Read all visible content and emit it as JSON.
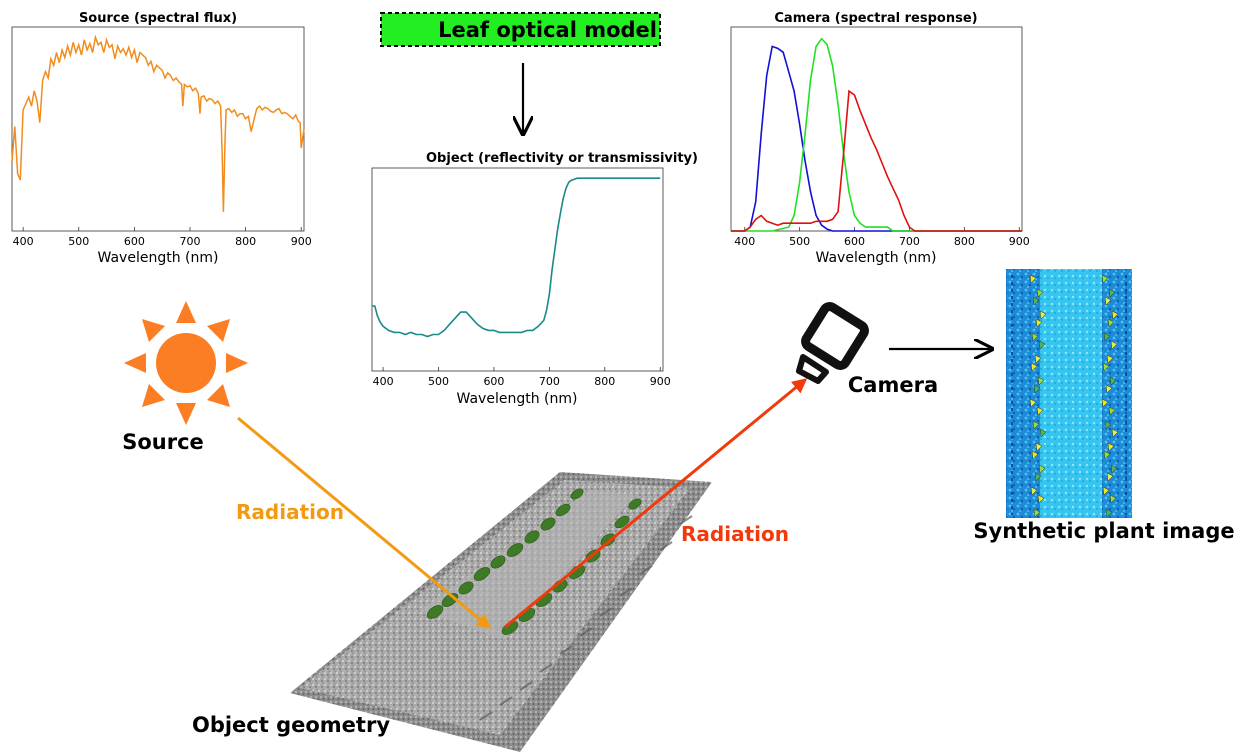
{
  "colors": {
    "source_line": "#f28c1c",
    "object_line": "#1a8a87",
    "cam_blue": "#1010d8",
    "cam_green": "#22e022",
    "cam_red": "#e01010",
    "radiation_in": "#f39a12",
    "radiation_out": "#f03a0c",
    "model_box": "#22ee22",
    "sun": "#fb7d24"
  },
  "labels": {
    "leaf_model": "Leaf optical model",
    "source": "Source",
    "camera": "Camera",
    "radiation_in": "Radiation",
    "radiation_out": "Radiation",
    "object_geometry": "Object geometry",
    "synthetic_image": "Synthetic plant image"
  },
  "icons": [
    "sun-icon",
    "camera-icon",
    "down-arrow-icon",
    "right-arrow-icon"
  ],
  "chart_data": [
    {
      "id": "source",
      "type": "line",
      "title": "Source (spectral flux)",
      "xlabel": "Wavelength (nm)",
      "ylabel": "",
      "xlim": [
        380,
        905
      ],
      "ylim": [
        0,
        1.6
      ],
      "xticks": [
        400,
        500,
        600,
        700,
        800,
        900
      ],
      "series": [
        {
          "color": "#f28c1c",
          "x": [
            380,
            385,
            390,
            395,
            400,
            405,
            410,
            415,
            420,
            425,
            430,
            435,
            440,
            445,
            450,
            455,
            460,
            465,
            470,
            475,
            480,
            485,
            490,
            495,
            500,
            505,
            510,
            515,
            520,
            525,
            530,
            535,
            540,
            545,
            550,
            555,
            560,
            565,
            570,
            575,
            580,
            585,
            590,
            595,
            600,
            605,
            610,
            615,
            620,
            625,
            630,
            635,
            640,
            645,
            650,
            655,
            660,
            665,
            670,
            675,
            680,
            685,
            687,
            690,
            695,
            700,
            705,
            710,
            715,
            718,
            720,
            725,
            730,
            735,
            740,
            745,
            750,
            755,
            758,
            760,
            763,
            765,
            770,
            775,
            780,
            785,
            790,
            795,
            800,
            805,
            810,
            815,
            820,
            825,
            830,
            835,
            840,
            845,
            850,
            855,
            860,
            865,
            870,
            875,
            880,
            885,
            890,
            895,
            898,
            900,
            905
          ],
          "y": [
            0.55,
            0.82,
            0.45,
            0.4,
            0.95,
            1.0,
            1.05,
            0.98,
            1.1,
            1.02,
            0.85,
            1.18,
            1.25,
            1.2,
            1.35,
            1.3,
            1.4,
            1.32,
            1.42,
            1.36,
            1.45,
            1.38,
            1.48,
            1.4,
            1.46,
            1.38,
            1.5,
            1.42,
            1.47,
            1.4,
            1.52,
            1.46,
            1.48,
            1.4,
            1.5,
            1.44,
            1.46,
            1.35,
            1.45,
            1.4,
            1.43,
            1.38,
            1.44,
            1.36,
            1.42,
            1.32,
            1.4,
            1.38,
            1.36,
            1.3,
            1.33,
            1.25,
            1.3,
            1.28,
            1.26,
            1.2,
            1.24,
            1.22,
            1.18,
            1.2,
            1.17,
            1.15,
            0.98,
            1.15,
            1.13,
            1.14,
            1.1,
            1.12,
            1.08,
            0.92,
            1.05,
            1.06,
            1.02,
            1.04,
            1.03,
            1.0,
            1.02,
            0.98,
            0.6,
            0.15,
            0.7,
            0.95,
            0.96,
            0.93,
            0.95,
            0.9,
            0.92,
            0.92,
            0.88,
            0.9,
            0.78,
            0.87,
            0.96,
            0.98,
            0.95,
            0.97,
            0.96,
            0.94,
            0.93,
            0.95,
            0.96,
            0.92,
            0.93,
            0.92,
            0.9,
            0.88,
            0.91,
            0.86,
            0.85,
            0.65,
            0.8
          ]
        }
      ]
    },
    {
      "id": "object",
      "type": "line",
      "title": "Object (reflectivity or transmissivity)",
      "xlabel": "Wavelength (nm)",
      "ylabel": "",
      "xlim": [
        380,
        905
      ],
      "ylim": [
        0,
        1.0
      ],
      "xticks": [
        400,
        500,
        600,
        700,
        800,
        900
      ],
      "series": [
        {
          "color": "#1a8a87",
          "x": [
            380,
            385,
            390,
            395,
            400,
            405,
            410,
            420,
            430,
            440,
            450,
            460,
            470,
            480,
            490,
            500,
            510,
            520,
            530,
            540,
            550,
            560,
            570,
            580,
            590,
            600,
            610,
            620,
            630,
            640,
            650,
            660,
            670,
            680,
            690,
            695,
            700,
            705,
            710,
            715,
            720,
            725,
            730,
            735,
            740,
            745,
            750,
            760,
            780,
            800,
            820,
            840,
            860,
            880,
            900
          ],
          "y": [
            0.32,
            0.32,
            0.27,
            0.24,
            0.22,
            0.21,
            0.2,
            0.19,
            0.19,
            0.18,
            0.19,
            0.18,
            0.18,
            0.17,
            0.18,
            0.18,
            0.2,
            0.23,
            0.26,
            0.29,
            0.29,
            0.26,
            0.23,
            0.21,
            0.2,
            0.2,
            0.19,
            0.19,
            0.19,
            0.19,
            0.19,
            0.2,
            0.2,
            0.22,
            0.25,
            0.3,
            0.38,
            0.5,
            0.6,
            0.7,
            0.78,
            0.85,
            0.9,
            0.93,
            0.94,
            0.945,
            0.95,
            0.95,
            0.95,
            0.95,
            0.95,
            0.95,
            0.95,
            0.95,
            0.95
          ]
        }
      ]
    },
    {
      "id": "camera",
      "type": "line",
      "title": "Camera (spectral response)",
      "xlabel": "Wavelength (nm)",
      "ylabel": "",
      "xlim": [
        375,
        905
      ],
      "ylim": [
        0,
        1.05
      ],
      "xticks": [
        400,
        500,
        600,
        700,
        800,
        900
      ],
      "series": [
        {
          "color": "#1010d8",
          "x": [
            375,
            400,
            410,
            420,
            430,
            440,
            450,
            460,
            470,
            480,
            490,
            500,
            510,
            520,
            530,
            540,
            550,
            560,
            570,
            600,
            700,
            800,
            905
          ],
          "y": [
            0.0,
            0.0,
            0.02,
            0.15,
            0.5,
            0.8,
            0.95,
            0.94,
            0.92,
            0.82,
            0.72,
            0.55,
            0.36,
            0.2,
            0.08,
            0.03,
            0.01,
            0.0,
            0.0,
            0.0,
            0.0,
            0.0,
            0.0
          ]
        },
        {
          "color": "#22e022",
          "x": [
            375,
            400,
            450,
            480,
            490,
            500,
            510,
            520,
            530,
            540,
            550,
            560,
            570,
            580,
            590,
            600,
            610,
            620,
            630,
            640,
            650,
            660,
            670,
            680,
            905
          ],
          "y": [
            0.0,
            0.0,
            0.0,
            0.02,
            0.08,
            0.25,
            0.5,
            0.78,
            0.95,
            0.99,
            0.96,
            0.85,
            0.65,
            0.4,
            0.2,
            0.08,
            0.04,
            0.02,
            0.02,
            0.02,
            0.02,
            0.02,
            0.0,
            0.0,
            0.0
          ]
        },
        {
          "color": "#e01010",
          "x": [
            375,
            400,
            410,
            420,
            430,
            440,
            450,
            460,
            470,
            480,
            490,
            500,
            510,
            520,
            530,
            540,
            550,
            560,
            570,
            580,
            590,
            600,
            610,
            620,
            630,
            640,
            650,
            660,
            670,
            680,
            690,
            700,
            710,
            905
          ],
          "y": [
            0.0,
            0.0,
            0.02,
            0.06,
            0.08,
            0.05,
            0.04,
            0.03,
            0.04,
            0.04,
            0.04,
            0.04,
            0.04,
            0.04,
            0.05,
            0.05,
            0.05,
            0.06,
            0.1,
            0.4,
            0.72,
            0.7,
            0.62,
            0.55,
            0.48,
            0.42,
            0.35,
            0.28,
            0.22,
            0.16,
            0.08,
            0.02,
            0.0,
            0.0
          ]
        }
      ]
    }
  ]
}
